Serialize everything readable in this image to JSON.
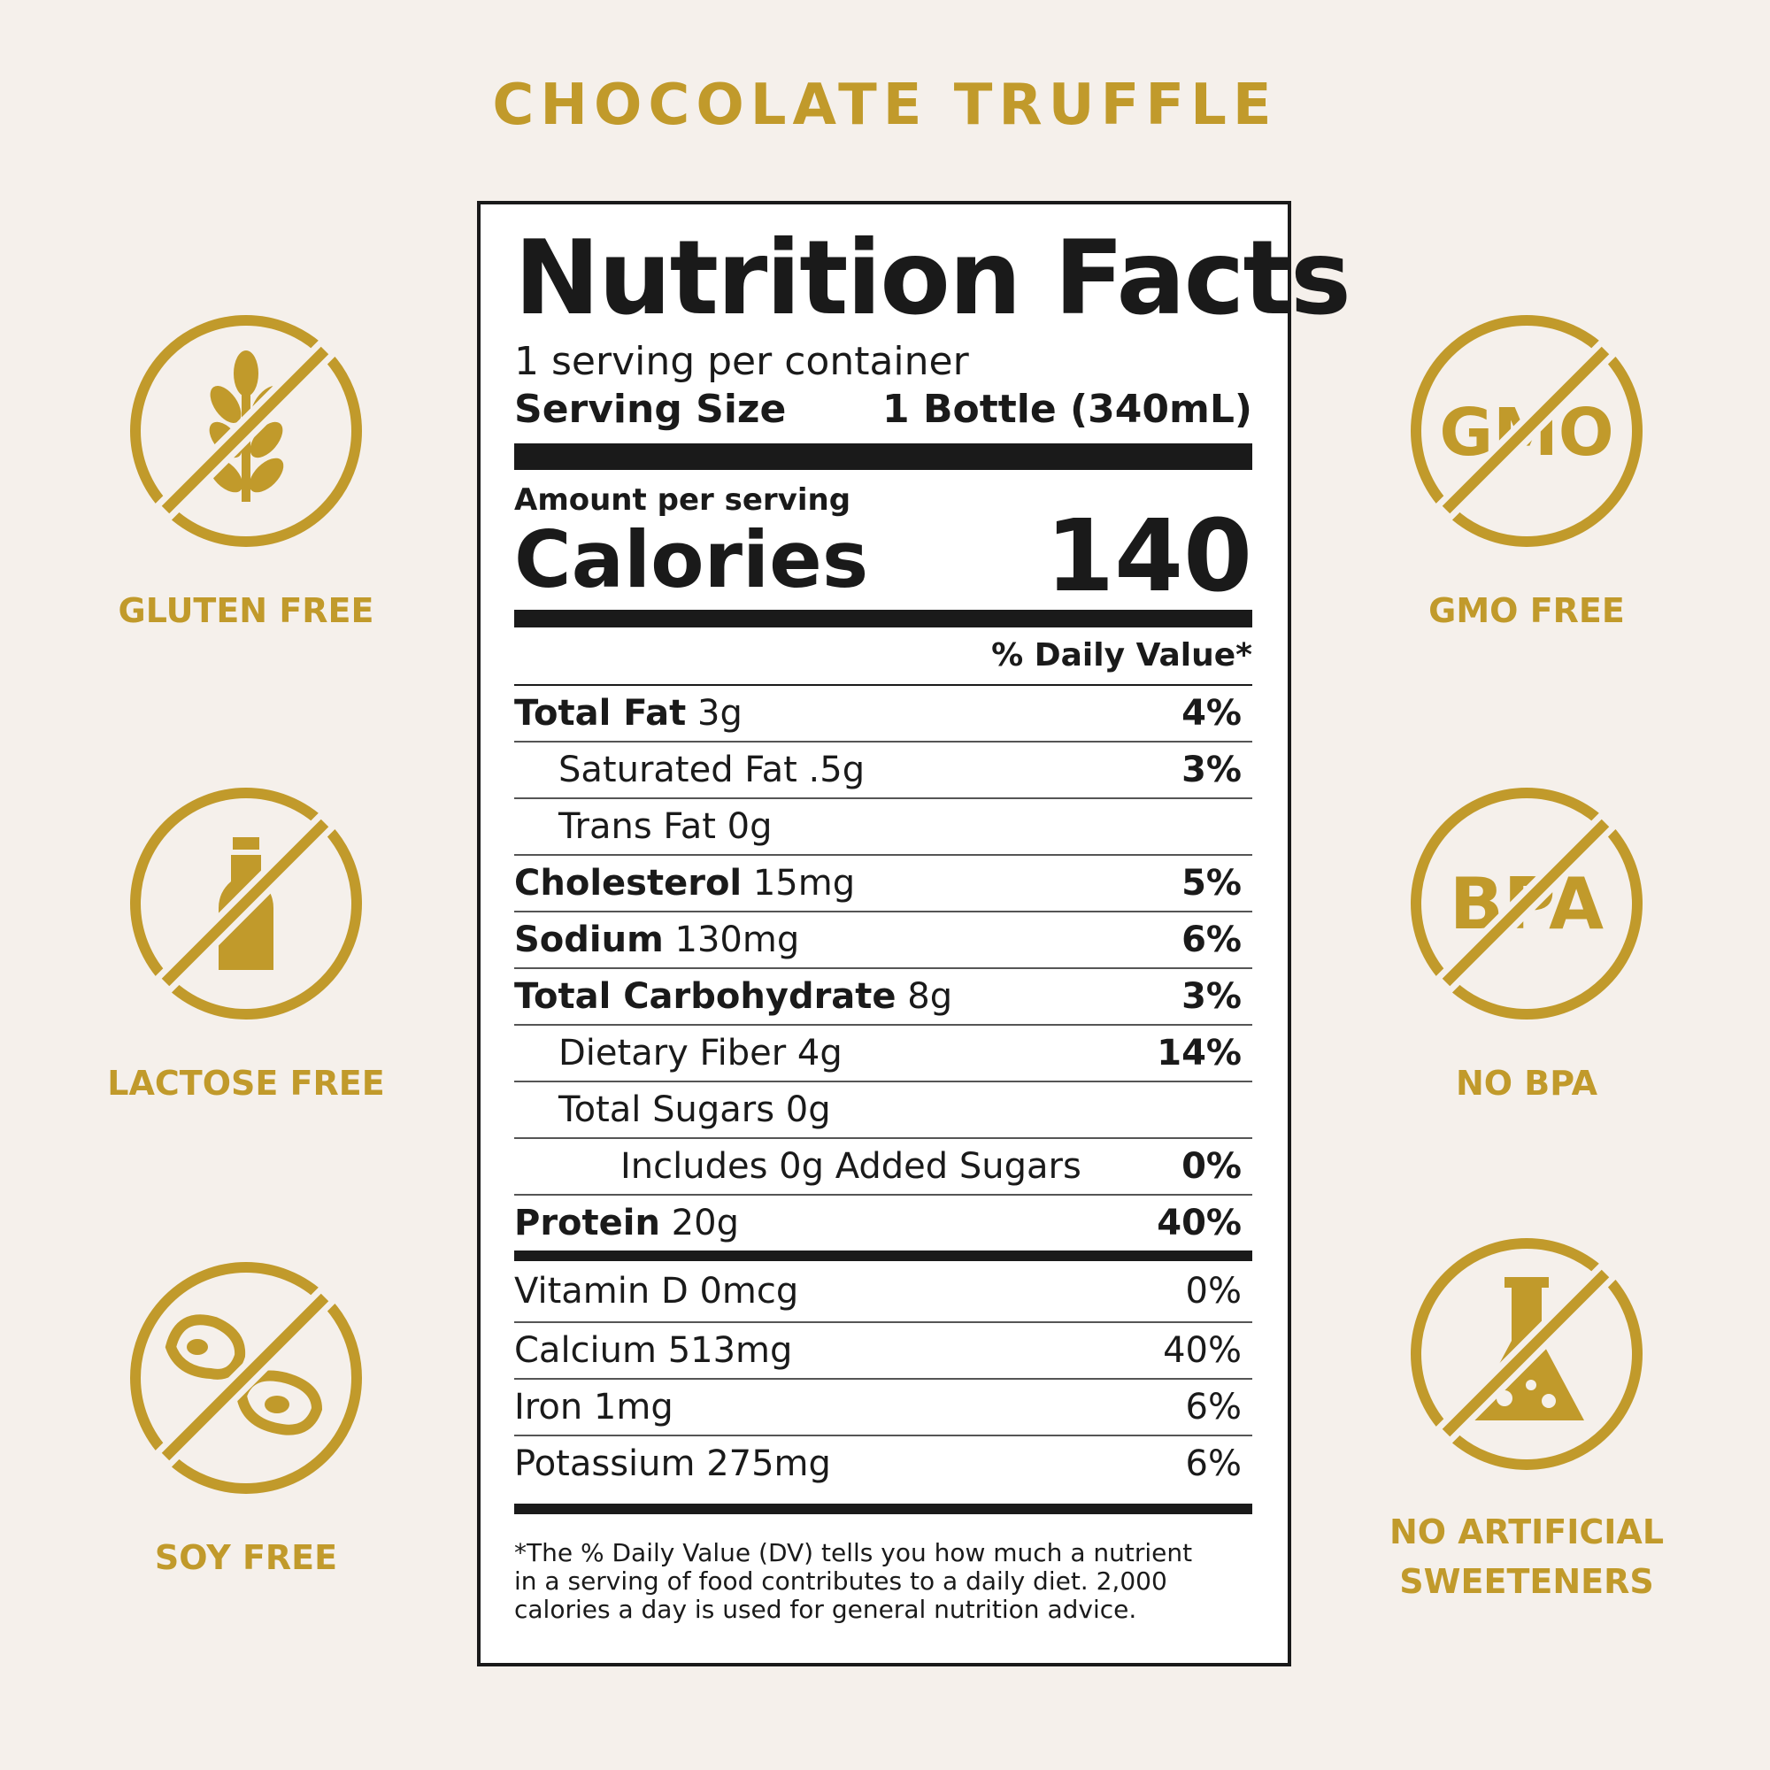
{
  "title": "CHOCOLATE TRUFFLE",
  "badges": {
    "gluten": {
      "label": "GLUTEN FREE",
      "icon": "wheat-icon"
    },
    "gmo": {
      "label": "GMO FREE",
      "icon_text": "GMO"
    },
    "lactose": {
      "label": "LACTOSE FREE",
      "icon": "milk-bottle-icon"
    },
    "bpa": {
      "label": "NO BPA",
      "icon_text": "BPA"
    },
    "soy": {
      "label": "SOY FREE",
      "icon": "soybean-icon"
    },
    "sweeteners": {
      "label_line1": "NO ARTIFICIAL",
      "label_line2": "SWEETENERS",
      "icon": "flask-icon"
    }
  },
  "colors": {
    "accent": "#c19a2b",
    "background": "#f5f0eb",
    "ink": "#1a1a1a"
  },
  "label": {
    "title": "Nutrition Facts",
    "servings": "1 serving per container",
    "serving_size_label": "Serving Size",
    "serving_size_value": "1 Bottle (340mL)",
    "amount_per_serving": "Amount per serving",
    "calories_label": "Calories",
    "calories_value": "140",
    "dv_header": "% Daily Value*",
    "nutrients": [
      {
        "bold": "Total Fat",
        "rest": " 3g",
        "pct": "4%"
      },
      {
        "bold": "",
        "rest": "Saturated Fat .5g",
        "pct": "3%"
      },
      {
        "bold": "",
        "rest": "Trans Fat 0g",
        "pct": ""
      },
      {
        "bold": "Cholesterol",
        "rest": " 15mg",
        "pct": "5%"
      },
      {
        "bold": "Sodium",
        "rest": " 130mg",
        "pct": "6%"
      },
      {
        "bold": "Total Carbohydrate",
        "rest": " 8g",
        "pct": "3%"
      },
      {
        "bold": "",
        "rest": "Dietary Fiber 4g",
        "pct": "14%"
      },
      {
        "bold": "",
        "rest": "Total Sugars 0g",
        "pct": ""
      },
      {
        "bold": "",
        "rest": "Includes 0g Added Sugars",
        "pct": "0%"
      },
      {
        "bold": "Protein",
        "rest": " 20g",
        "pct": "40%"
      }
    ],
    "vitamins": [
      {
        "name": "Vitamin D 0mcg",
        "pct": "0%"
      },
      {
        "name": "Calcium 513mg",
        "pct": "40%"
      },
      {
        "name": "Iron 1mg",
        "pct": "6%"
      },
      {
        "name": "Potassium 275mg",
        "pct": "6%"
      }
    ],
    "footnote": "*The % Daily Value (DV) tells you how much a nutrient in a serving of food contributes to a daily diet. 2,000 calories a day is used for general nutrition advice."
  }
}
